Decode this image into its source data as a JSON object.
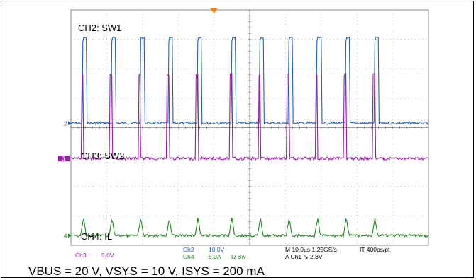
{
  "chart_data": {
    "type": "line",
    "title": "",
    "grid": true,
    "divisions": {
      "x": 10,
      "y": 8
    },
    "trigger_marker": "T",
    "channels": [
      {
        "id": "2",
        "name": "CH2: SW1",
        "color": "#1f5fbf",
        "marker": "2",
        "pulse_period_div": 0.8,
        "duty": 0.025,
        "kind": "switch-high",
        "level_div": 3.1
      },
      {
        "id": "3",
        "name": "CH3: SW2",
        "color": "#9a1fa8",
        "marker": "3",
        "pulse_period_div": 0.8,
        "duty": 0.03,
        "kind": "switch-low",
        "level_div": 3.0
      },
      {
        "id": "4",
        "name": "CH4: IL",
        "color": "#1d8a1d",
        "marker": "4",
        "pulse_period_div": 0.8,
        "duty": 0.03,
        "kind": "current-spike",
        "level_div": 0.6
      }
    ],
    "readouts": {
      "ch3_label": "Ch3",
      "ch3_scale": "5.0V",
      "ch2_label": "Ch2",
      "ch2_scale": "10.0V",
      "ch4_label": "Ch4",
      "ch4_scale": "5.0A",
      "bw_label": "Ω  Bw",
      "timebase": "M 10.0µs 1.25GS/s",
      "record": "IT 400ps/pt",
      "trigger": "A  Ch1  ↘  2.8V"
    }
  },
  "caption": "VBUS = 20 V, VSYS = 10 V, ISYS = 200 mA",
  "colors": {
    "ch2": "#1f5fbf",
    "ch3": "#9a1fa8",
    "ch4": "#1d8a1d",
    "trigger": "#ff7f00",
    "grid": "#9a9a9a"
  }
}
